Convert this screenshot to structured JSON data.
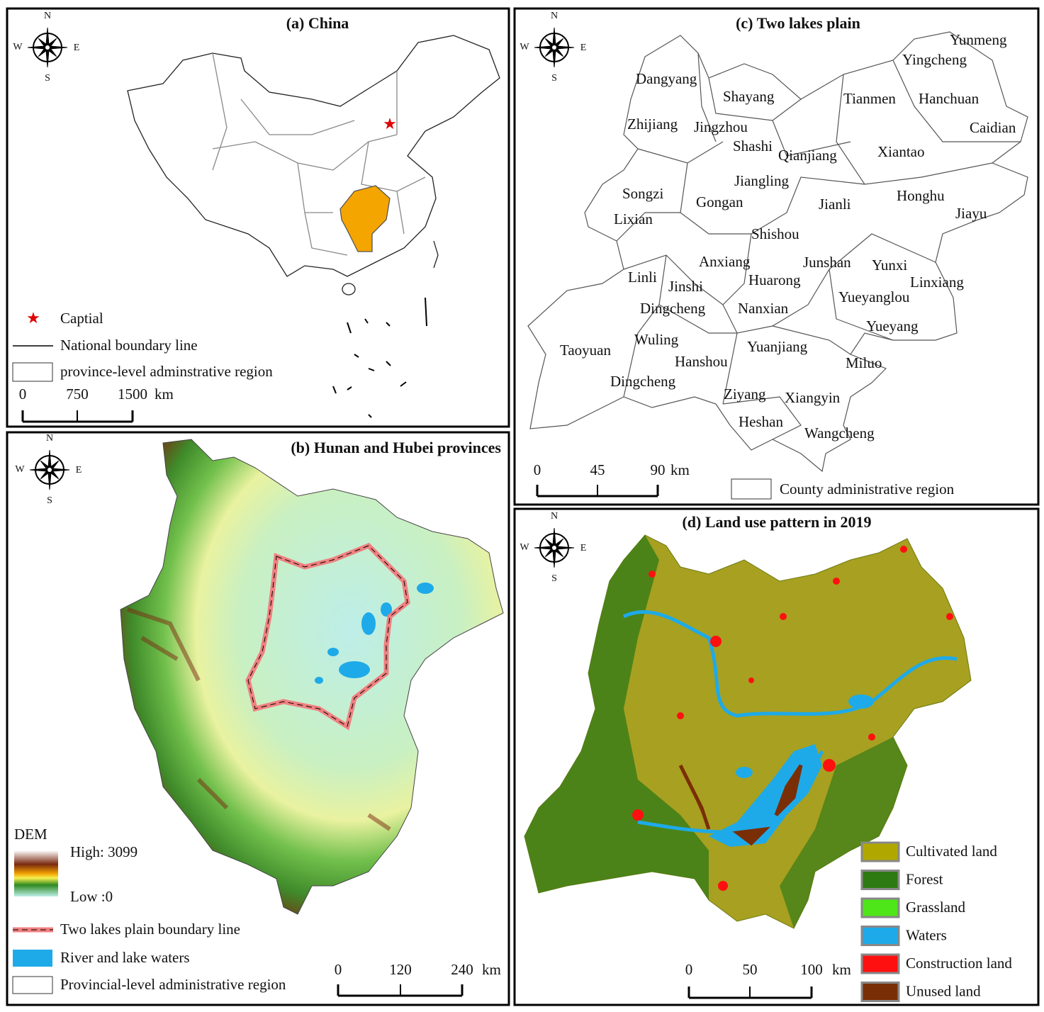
{
  "compass": {
    "n": "N",
    "s": "S",
    "w": "W",
    "e": "E"
  },
  "panel_a": {
    "title": "(a) China",
    "legend": {
      "capital": "Captial",
      "boundary": "National boundary line",
      "region": "province-level adminstrative region"
    },
    "scale": {
      "ticks": [
        "0",
        "750",
        "1500"
      ],
      "unit": "km"
    }
  },
  "panel_b": {
    "title": "(b) Hunan and Hubei provinces",
    "legend": {
      "dem": "DEM",
      "high": "High: 3099",
      "low": "Low :0",
      "boundary": "Two lakes plain boundary line",
      "waters": "River and lake waters",
      "region": "Provincial-level administrative region"
    },
    "scale": {
      "ticks": [
        "0",
        "120",
        "240"
      ],
      "unit": "km"
    }
  },
  "panel_c": {
    "title": "(c) Two lakes plain",
    "legend": {
      "region": "County administrative region"
    },
    "scale": {
      "ticks": [
        "0",
        "45",
        "90"
      ],
      "unit": "km"
    },
    "counties": [
      "Dangyang",
      "Shayang",
      "Tianmen",
      "Yingcheng",
      "Yunmeng",
      "Hanchuan",
      "Caidian",
      "Zhijiang",
      "Jingzhou",
      "Shashi",
      "Qianjiang",
      "Xiantao",
      "Jiangling",
      "Songzi",
      "Gongan",
      "Jianli",
      "Honghu",
      "Jiayu",
      "Lixian",
      "Shishou",
      "Anxiang",
      "Junshan",
      "Yunxi",
      "Linxiang",
      "Linli",
      "Jinshi",
      "Huarong",
      "Yueyanglou",
      "Dingcheng",
      "Nanxian",
      "Yueyang",
      "Wuling",
      "Taoyuan",
      "Yuanjiang",
      "Hanshou",
      "Miluo",
      "Dingcheng",
      "Ziyang",
      "Xiangyin",
      "Heshan",
      "Wangcheng"
    ]
  },
  "panel_d": {
    "title": "(d) Land use pattern in 2019",
    "scale": {
      "ticks": [
        "0",
        "50",
        "100"
      ],
      "unit": "km"
    },
    "classes": [
      {
        "name": "Cultivated land",
        "color": "#b0a800"
      },
      {
        "name": "Forest",
        "color": "#2d7a12"
      },
      {
        "name": "Grassland",
        "color": "#4ee619"
      },
      {
        "name": "Waters",
        "color": "#1eaae8"
      },
      {
        "name": "Construction land",
        "color": "#ff1010"
      },
      {
        "name": "Unused land",
        "color": "#7a2e05"
      }
    ]
  }
}
